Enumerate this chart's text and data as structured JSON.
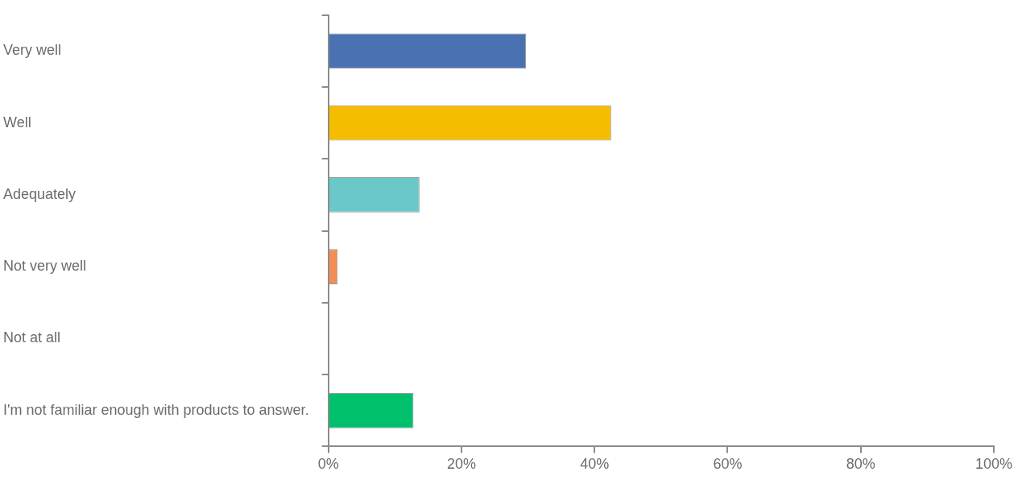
{
  "chart_data": {
    "type": "bar",
    "orientation": "horizontal",
    "categories": [
      "Very well",
      "Well",
      "Adequately",
      "Not very well",
      "Not at all",
      "I'm not familiar enough with products to answer."
    ],
    "values": [
      29.7,
      42.5,
      13.7,
      1.4,
      0,
      12.8
    ],
    "colors": [
      "#4a72b2",
      "#f5bd00",
      "#6ac8c8",
      "#f28e56",
      "#a5a5a5",
      "#00c06e"
    ],
    "xlim": [
      0,
      100
    ],
    "xticks": [
      {
        "value": 0,
        "label": "0%"
      },
      {
        "value": 20,
        "label": "20%"
      },
      {
        "value": 40,
        "label": "40%"
      },
      {
        "value": 60,
        "label": "60%"
      },
      {
        "value": 80,
        "label": "80%"
      },
      {
        "value": 100,
        "label": "100%"
      }
    ],
    "grid": false,
    "legend": false
  }
}
